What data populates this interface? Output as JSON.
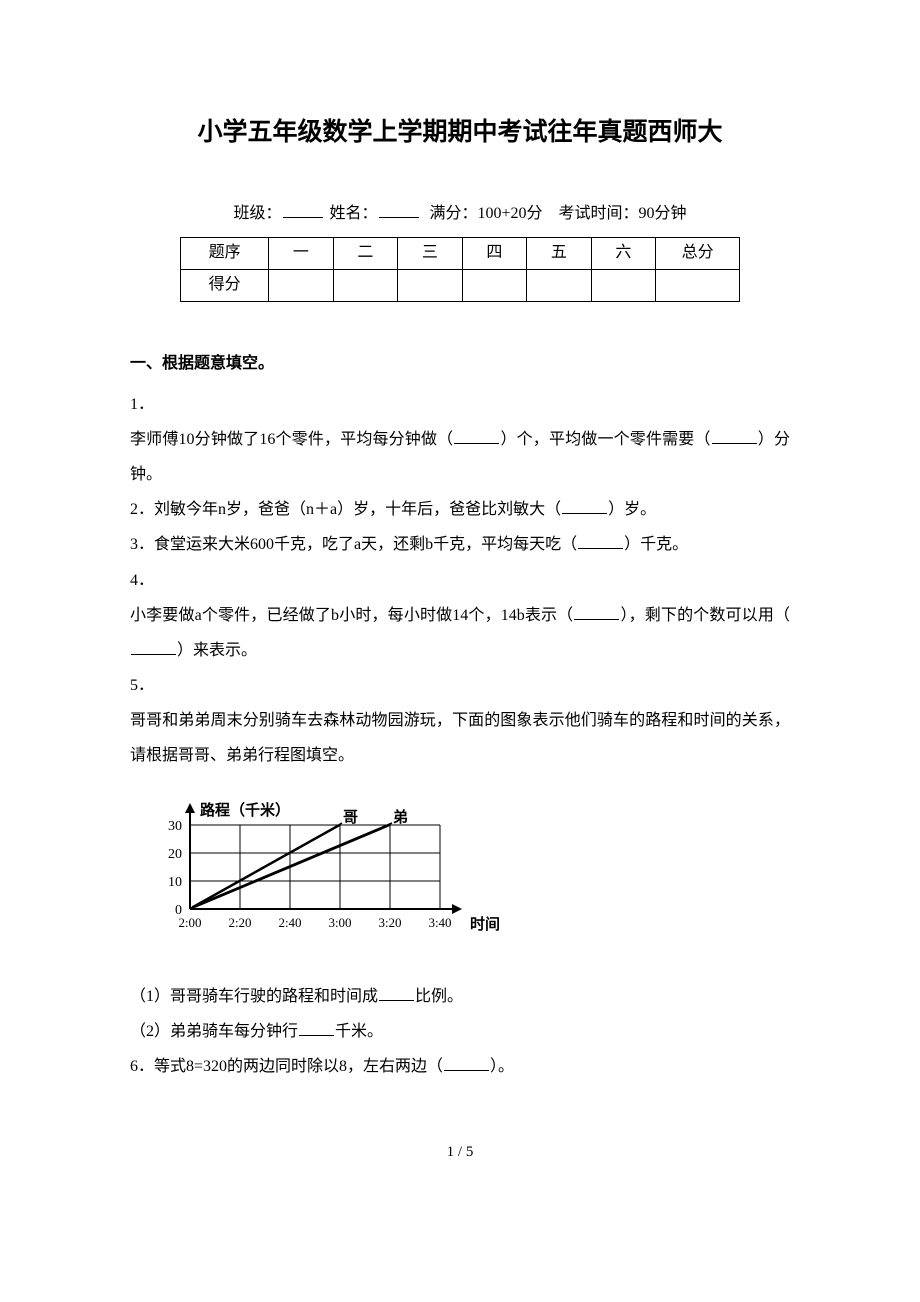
{
  "title": "小学五年级数学上学期期中考试往年真题西师大",
  "info": {
    "class_label": "班级：",
    "name_label": "姓名：",
    "full_score_label": "满分：100+20分",
    "time_label": "考试时间：90分钟"
  },
  "score_table": {
    "row1_label": "题序",
    "columns": [
      "一",
      "二",
      "三",
      "四",
      "五",
      "六",
      "总分"
    ],
    "row2_label": "得分"
  },
  "section1": {
    "heading": "一、根据题意填空。",
    "q1_num": "1．",
    "q1_text_a": "李师傅10分钟做了16个零件，平均每分钟做（",
    "q1_text_b": "）个，平均做一个零件需要（",
    "q1_text_c": "）分钟。",
    "q2_num": "2．",
    "q2_text_a": "刘敏今年n岁，爸爸（n＋a）岁，十年后，爸爸比刘敏大（",
    "q2_text_b": "）岁。",
    "q3_num": "3．",
    "q3_text_a": "食堂运来大米600千克，吃了a天，还剩b千克，平均每天吃（",
    "q3_text_b": "）千克。",
    "q4_num": "4．",
    "q4_text_a": "小李要做a个零件，已经做了b小时，每小时做14个，14b表示（",
    "q4_text_b": "），剩下的个数可以用（",
    "q4_text_c": "）来表示。",
    "q5_num": "5．",
    "q5_text": "哥哥和弟弟周末分别骑车去森林动物园游玩，下面的图象表示他们骑车的路程和时间的关系，请根据哥哥、弟弟行程图填空。",
    "q5_sub1_a": "（1）哥哥骑车行驶的路程和时间成",
    "q5_sub1_b": "比例。",
    "q5_sub2_a": "（2）弟弟骑车每分钟行",
    "q5_sub2_b": "千米。",
    "q6_num": "6．",
    "q6_text_a": "等式8=320的两边同时除以8，左右两边（",
    "q6_text_b": "）。"
  },
  "chart": {
    "y_label": "路程（千米）",
    "x_label": "时间",
    "line1_label": "哥",
    "line2_label": "弟",
    "y_ticks": [
      "30",
      "20",
      "10",
      "0"
    ],
    "x_ticks": [
      "2:00",
      "2:20",
      "2:40",
      "3:00",
      "3:20",
      "3:40"
    ],
    "grid_cols": 5,
    "grid_rows": 3,
    "colors": {
      "axis": "#000000",
      "grid": "#000000",
      "line": "#000000",
      "text": "#000000"
    },
    "brother_line": {
      "x1": 0,
      "y1": 0,
      "x2": 3,
      "y2": 3
    },
    "younger_line": {
      "x1": 0,
      "y1": 0,
      "x2": 4,
      "y2": 3
    }
  },
  "footer": "1 / 5"
}
